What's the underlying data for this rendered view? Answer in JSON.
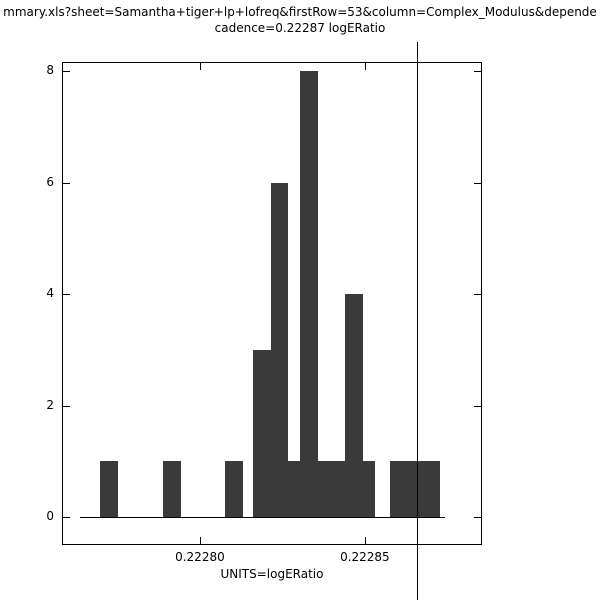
{
  "title": {
    "line1": "mmary.xls?sheet=Samantha+tiger+lp+lofreq&firstRow=53&column=Complex_Modulus&depende",
    "line2": "cadence=0.22287 logERatio"
  },
  "chart_data": {
    "type": "bar",
    "subtype": "histogram",
    "title": "cadence=0.22287 logERatio",
    "xlabel": "UNITS=logERatio",
    "ylabel": "",
    "grid": false,
    "legend": "none",
    "x_range": [
      0.2227582,
      0.2228855
    ],
    "y_range": [
      -0.5,
      8.161
    ],
    "x_ticks": [
      {
        "value": 0.2228,
        "label": "0.22280"
      },
      {
        "value": 0.22285,
        "label": "0.22285"
      }
    ],
    "y_ticks": [
      {
        "value": 0,
        "label": "0"
      },
      {
        "value": 2,
        "label": "2"
      },
      {
        "value": 4,
        "label": "4"
      },
      {
        "value": 6,
        "label": "6"
      },
      {
        "value": 8,
        "label": "8"
      }
    ],
    "bars": [
      {
        "x0": 0.2227697,
        "x1": 0.2227752,
        "count": 1
      },
      {
        "x0": 0.2227888,
        "x1": 0.2227942,
        "count": 1
      },
      {
        "x0": 0.2228076,
        "x1": 0.222813,
        "count": 1
      },
      {
        "x0": 0.2228161,
        "x1": 0.2228215,
        "count": 3
      },
      {
        "x0": 0.2228215,
        "x1": 0.2228267,
        "count": 6
      },
      {
        "x0": 0.2228267,
        "x1": 0.2228303,
        "count": 1
      },
      {
        "x0": 0.2228303,
        "x1": 0.2228358,
        "count": 8
      },
      {
        "x0": 0.2228358,
        "x1": 0.2228439,
        "count": 1
      },
      {
        "x0": 0.2228439,
        "x1": 0.2228494,
        "count": 4
      },
      {
        "x0": 0.2228494,
        "x1": 0.222853,
        "count": 1
      },
      {
        "x0": 0.2228576,
        "x1": 0.2228727,
        "count": 1
      }
    ],
    "baseline": {
      "x0": 0.2227636,
      "x1": 0.2228742
    },
    "marker_line_x": 0.2228658,
    "bar_color": "#3a3a3a",
    "line_color": "#000000"
  }
}
